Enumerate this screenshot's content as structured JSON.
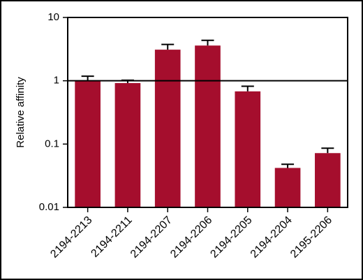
{
  "chart_data": {
    "type": "bar",
    "y_label": "Relative affinity",
    "categories": [
      "2194-2213",
      "2194-2211",
      "2194-2207",
      "2194-2206",
      "2194-2205",
      "2194-2204",
      "2195-2206"
    ],
    "values": [
      1.0,
      0.92,
      3.1,
      3.6,
      0.68,
      0.042,
      0.072
    ],
    "errors": [
      0.18,
      0.1,
      0.65,
      0.75,
      0.14,
      0.006,
      0.014
    ],
    "color": "#a50e2d",
    "log_y": true,
    "ylim": [
      0.01,
      10
    ],
    "yticks": [
      0.01,
      0.1,
      1,
      10
    ],
    "reference_line": 1
  }
}
